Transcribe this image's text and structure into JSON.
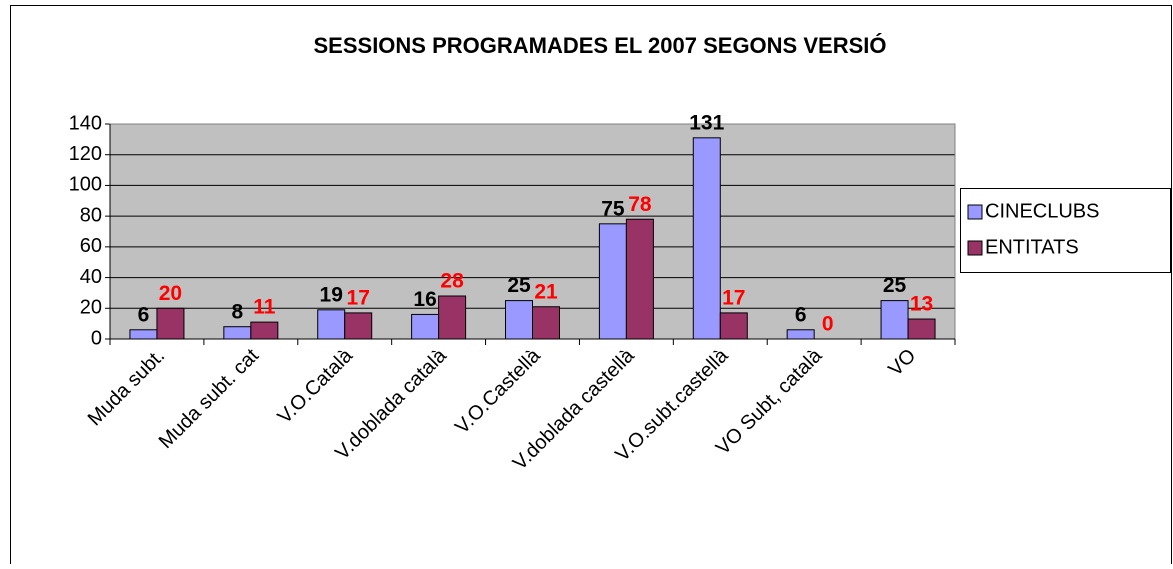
{
  "chart_data": {
    "type": "bar",
    "title": "SESSIONS PROGRAMADES EL 2007 SEGONS VERSIÓ",
    "categories": [
      "Muda subt.",
      "Muda subt. cat",
      "V.O.Català",
      "V.doblada català",
      "V.O.Castellà",
      "V.doblada castellà",
      "V.O.subt.castellà",
      "VO Subt, català",
      "VO"
    ],
    "series": [
      {
        "name": "CINECLUBS",
        "color": "#9999ff",
        "label_color": "#000000",
        "values": [
          6,
          8,
          19,
          16,
          25,
          75,
          131,
          6,
          25
        ]
      },
      {
        "name": "ENTITATS",
        "color": "#993366",
        "label_color": "#ff0000",
        "values": [
          20,
          11,
          17,
          28,
          21,
          78,
          17,
          0,
          13
        ]
      }
    ],
    "ylim": [
      0,
      140
    ],
    "yticks": [
      0,
      20,
      40,
      60,
      80,
      100,
      120,
      140
    ],
    "grid": true,
    "legend": "right"
  }
}
